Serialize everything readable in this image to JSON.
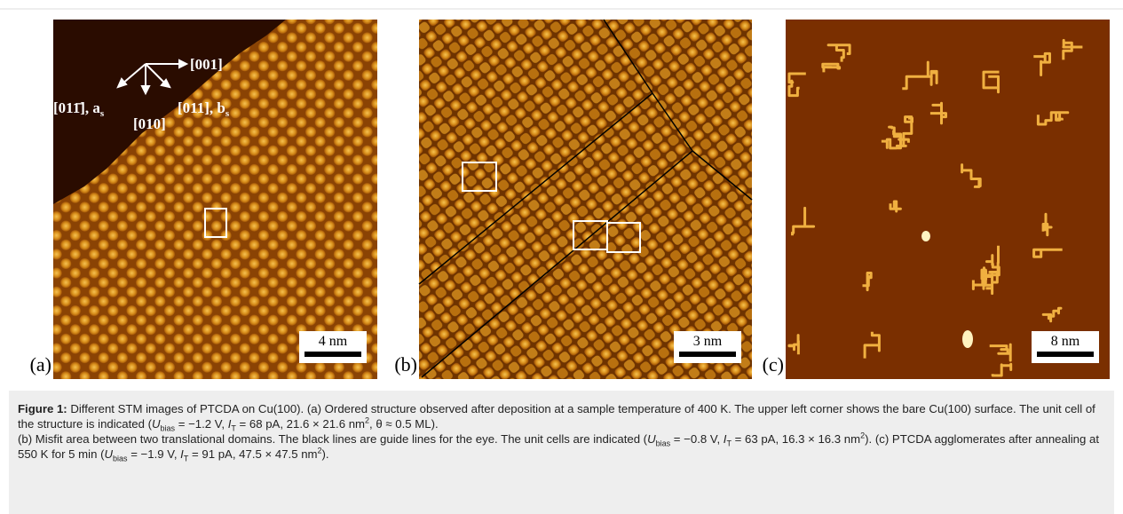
{
  "panels": [
    {
      "label": "(a)",
      "scale_bar": "4 nm",
      "directions": [
        {
          "text": "[001]"
        },
        {
          "text": "[011̄], a",
          "sub": "s"
        },
        {
          "text": "[010]"
        },
        {
          "text": "[011], b",
          "sub": "s"
        }
      ]
    },
    {
      "label": "(b)",
      "scale_bar": "3 nm"
    },
    {
      "label": "(c)",
      "scale_bar": "8 nm"
    }
  ],
  "caption": {
    "paragraphs": [
      [
        "Figure 1:",
        " Different STM images of PTCDA on Cu(100). (a) Ordered structure observed after deposition at a sample temperature of 400 K. The upper left corner shows the bare Cu(100) surface. The unit cell of the structure is indicated (",
        "U",
        "bias",
        " = −1.2 V, ",
        "I",
        "T",
        " = 68 pA, 21.6 × 21.6 nm",
        "2",
        ", θ ≈ 0.5 ML)."
      ],
      [
        "(b) Misfit area between two translational domains. The black lines are guide lines for the eye. The unit cells are indicated (",
        "U",
        "bias",
        " = −0.8 V, ",
        "I",
        "T",
        " = 63 pA, 16.3 × 16.3 nm",
        "2",
        "). (c) PTCDA agglomerates after annealing at 550 K for 5 min (",
        "U",
        "bias",
        " = −1.9 V, ",
        "I",
        "T",
        " = 91 pA, 47.5 × 47.5 nm",
        "2",
        ")."
      ]
    ]
  }
}
